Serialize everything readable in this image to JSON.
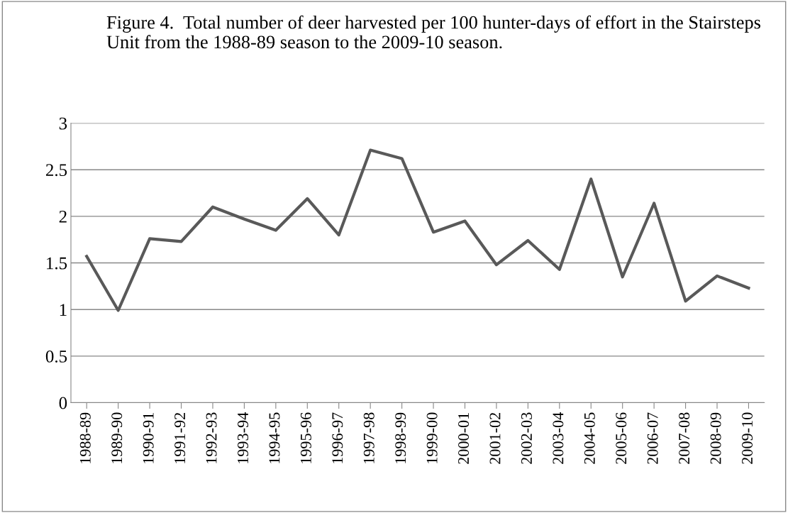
{
  "chart_data": {
    "type": "line",
    "title": "Figure 4.  Total number of deer harvested per 100 hunter-days of effort in the Stairsteps Unit from the 1988-89 season to the 2009-10 season.",
    "categories": [
      "1988-89",
      "1989-90",
      "1990-91",
      "1991-92",
      "1992-93",
      "1993-94",
      "1994-95",
      "1995-96",
      "1996-97",
      "1997-98",
      "1998-99",
      "1999-00",
      "2000-01",
      "2001-02",
      "2002-03",
      "2003-04",
      "2004-05",
      "2005-06",
      "2006-07",
      "2007-08",
      "2008-09",
      "2009-10"
    ],
    "series": [
      {
        "color": "#595959",
        "values": [
          1.57,
          0.99,
          1.76,
          1.73,
          2.1,
          1.97,
          1.85,
          2.19,
          1.8,
          2.71,
          2.62,
          1.83,
          1.95,
          1.48,
          1.74,
          1.43,
          2.4,
          1.35,
          2.14,
          1.09,
          1.36,
          1.23
        ]
      }
    ],
    "ylim": [
      0,
      3
    ],
    "yticks": [
      0,
      0.5,
      1,
      1.5,
      2,
      2.5,
      3
    ],
    "grid": "y",
    "legend": false,
    "marker": "none",
    "line_style": "solid"
  }
}
